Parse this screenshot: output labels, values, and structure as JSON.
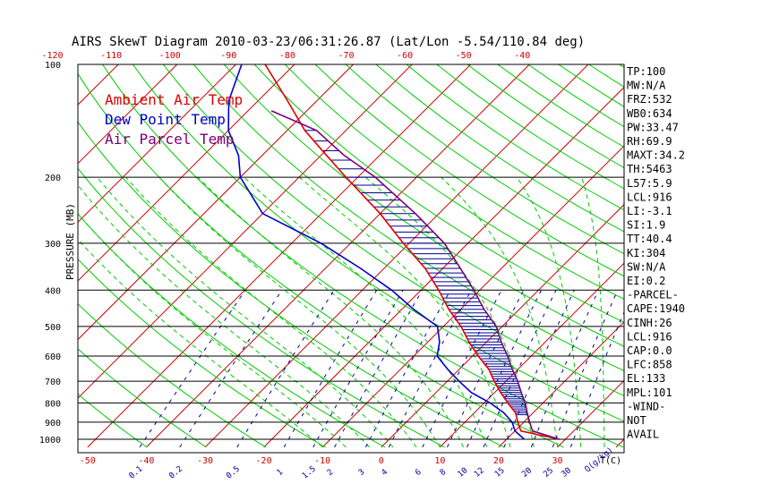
{
  "chart_data": {
    "type": "line",
    "title": "AIRS SkewT Diagram 2010-03-23/06:31:26.87 (Lat/Lon -5.54/110.84 deg)",
    "ylabel": "PRESSURE (MB)",
    "xlabel": "T(C)",
    "mixing_ratio_label": "Q(g/kg)",
    "bottom_temperature_ticks": [
      "-50",
      "-40",
      "-30",
      "-20",
      "-10",
      "0",
      "10",
      "20",
      "30"
    ],
    "top_temperature_ticks": [
      "-120",
      "-110",
      "-100",
      "-90",
      "-80",
      "-70",
      "-60",
      "-50",
      "-40"
    ],
    "top_temperature_values": [
      -120,
      -110,
      -100,
      -90,
      -80,
      -70,
      -60,
      -50,
      -40
    ],
    "mixing_ratio_ticks": [
      "0.1",
      "0.2",
      "0.5",
      "1",
      "1.5",
      "2",
      "3",
      "4",
      "6",
      "8",
      "10",
      "12",
      "15",
      "20",
      "25",
      "30"
    ],
    "mixing_ratio_values": [
      0.1,
      0.2,
      0.5,
      1,
      1.5,
      2,
      3,
      4,
      6,
      8,
      10,
      12,
      15,
      20,
      25,
      30
    ],
    "pressure_ticks": [
      "100",
      "200",
      "300",
      "400",
      "500",
      "600",
      "700",
      "800",
      "900",
      "1000"
    ],
    "pressure_values": [
      100,
      200,
      300,
      400,
      500,
      600,
      700,
      800,
      900,
      1000
    ],
    "ylim": [
      1050,
      100
    ],
    "x_range_at_surface": [
      -53,
      40
    ],
    "legend": [
      {
        "name": "Ambient Air Temp",
        "color": "#dd0000"
      },
      {
        "name": "Dew Point Temp",
        "color": "#0000cc"
      },
      {
        "name": "Air Parcel Temp",
        "color": "#770077"
      }
    ],
    "series": [
      {
        "name": "Ambient Air Temp",
        "color": "#dd0000",
        "points": [
          [
            1000,
            29
          ],
          [
            975,
            25
          ],
          [
            950,
            21
          ],
          [
            925,
            20
          ],
          [
            900,
            19
          ],
          [
            850,
            17
          ],
          [
            800,
            14
          ],
          [
            750,
            11
          ],
          [
            700,
            8
          ],
          [
            650,
            5
          ],
          [
            600,
            1
          ],
          [
            550,
            -3
          ],
          [
            500,
            -7
          ],
          [
            450,
            -12
          ],
          [
            400,
            -17
          ],
          [
            350,
            -23
          ],
          [
            300,
            -31
          ],
          [
            250,
            -40
          ],
          [
            200,
            -52
          ],
          [
            175,
            -59
          ],
          [
            150,
            -67
          ],
          [
            125,
            -75
          ],
          [
            100,
            -85
          ]
        ]
      },
      {
        "name": "Dew Point Temp",
        "color": "#0000cc",
        "points": [
          [
            1000,
            23
          ],
          [
            950,
            20
          ],
          [
            900,
            18
          ],
          [
            850,
            15
          ],
          [
            800,
            11
          ],
          [
            750,
            6
          ],
          [
            700,
            2
          ],
          [
            650,
            -2
          ],
          [
            600,
            -6
          ],
          [
            550,
            -8
          ],
          [
            500,
            -11
          ],
          [
            450,
            -18
          ],
          [
            400,
            -25
          ],
          [
            350,
            -34
          ],
          [
            300,
            -45
          ],
          [
            250,
            -60
          ],
          [
            200,
            -70
          ],
          [
            175,
            -74
          ],
          [
            150,
            -80
          ],
          [
            125,
            -85
          ],
          [
            100,
            -89
          ]
        ]
      },
      {
        "name": "Air Parcel Temp",
        "color": "#770077",
        "points": [
          [
            1000,
            29
          ],
          [
            975,
            26
          ],
          [
            950,
            23
          ],
          [
            925,
            22
          ],
          [
            900,
            21
          ],
          [
            850,
            19
          ],
          [
            800,
            17
          ],
          [
            750,
            14.5
          ],
          [
            700,
            12
          ],
          [
            650,
            9
          ],
          [
            600,
            6
          ],
          [
            550,
            2.5
          ],
          [
            500,
            -1
          ],
          [
            450,
            -6
          ],
          [
            400,
            -11
          ],
          [
            350,
            -17
          ],
          [
            300,
            -24
          ],
          [
            250,
            -34
          ],
          [
            200,
            -47
          ],
          [
            175,
            -56
          ],
          [
            150,
            -65
          ],
          [
            133,
            -76
          ]
        ]
      }
    ],
    "indices": [
      "TP:100",
      "MW:N/A",
      "FRZ:532",
      "WB0:634",
      "PW:33.47",
      "RH:69.9",
      "MAXT:34.2",
      "TH:5463",
      "L57:5.9",
      "LCL:916",
      "LI:-3.1",
      "SI:1.9",
      "TT:40.4",
      "KI:304",
      "SW:N/A",
      "EI:0.2",
      "-PARCEL-",
      "CAPE:1940",
      "CINH:26",
      "LCL:916",
      "CAP:0.0",
      "LFC:858",
      "EL:133",
      "MPL:101",
      "-WIND-",
      "NOT",
      "AVAIL"
    ],
    "colors": {
      "isotherm": "#cc0000",
      "dry_adiabat": "#00cc00",
      "moist_adiabat": "#00cc00",
      "mixing_ratio": "#000099",
      "isobar": "#000000",
      "shading": "#000099"
    }
  }
}
